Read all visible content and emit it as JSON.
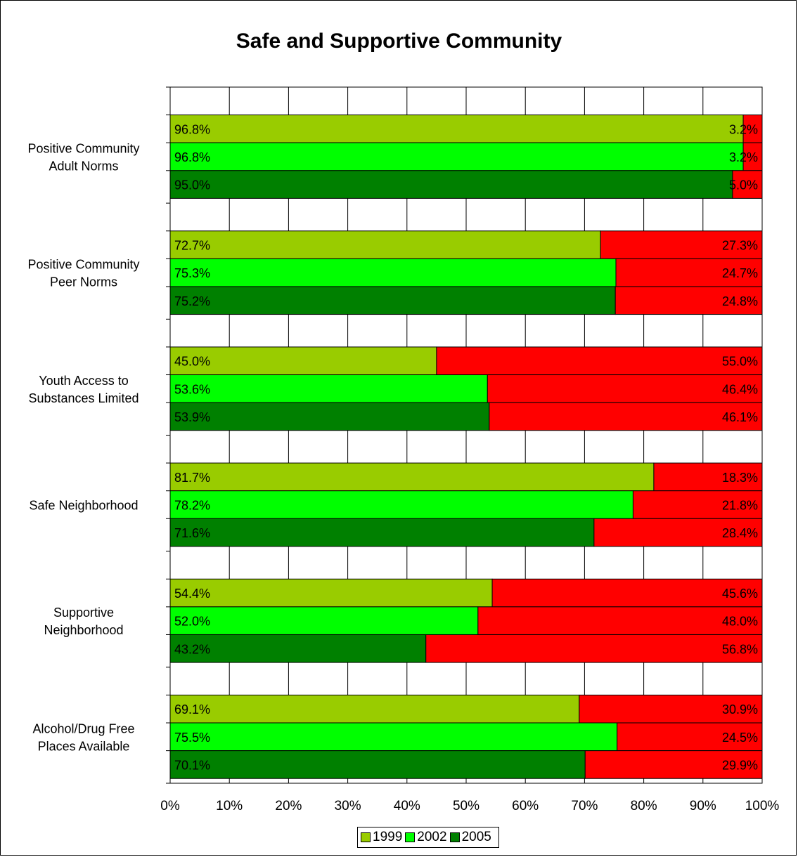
{
  "chart_data": {
    "type": "bar",
    "orientation": "horizontal",
    "stacked": true,
    "title": "Safe and Supportive Community",
    "categories": [
      [
        "Positive Community",
        "Adult Norms"
      ],
      [
        "Positive Community",
        "Peer Norms"
      ],
      [
        "Youth Access to",
        "Substances Limited"
      ],
      [
        "Safe Neighborhood"
      ],
      [
        "Supportive",
        "Neighborhood"
      ],
      [
        "Alcohol/Drug Free",
        "Places Available"
      ]
    ],
    "series": [
      {
        "name": "1999",
        "color": "#99cc00",
        "positive": [
          96.8,
          72.7,
          45.0,
          81.7,
          54.4,
          69.1
        ],
        "negative": [
          3.2,
          27.3,
          55.0,
          18.3,
          45.6,
          30.9
        ],
        "positive_labels": [
          "96.8%",
          "72.7%",
          "45.0%",
          "81.7%",
          "54.4%",
          "69.1%"
        ],
        "negative_labels": [
          "3.2%",
          "27.3%",
          "55.0%",
          "18.3%",
          "45.6%",
          "30.9%"
        ]
      },
      {
        "name": "2002",
        "color": "#00ff00",
        "positive": [
          96.8,
          75.3,
          53.6,
          78.2,
          52.0,
          75.5
        ],
        "negative": [
          3.2,
          24.7,
          46.4,
          21.8,
          48.0,
          24.5
        ],
        "positive_labels": [
          "96.8%",
          "75.3%",
          "53.6%",
          "78.2%",
          "52.0%",
          "75.5%"
        ],
        "negative_labels": [
          "3.2%",
          "24.7%",
          "46.4%",
          "21.8%",
          "48.0%",
          "24.5%"
        ]
      },
      {
        "name": "2005",
        "color": "#008000",
        "positive": [
          95.0,
          75.2,
          53.9,
          71.6,
          43.2,
          70.1
        ],
        "negative": [
          5.0,
          24.8,
          46.1,
          28.4,
          56.8,
          29.9
        ],
        "positive_labels": [
          "95.0%",
          "75.2%",
          "53.9%",
          "71.6%",
          "43.2%",
          "70.1%"
        ],
        "negative_labels": [
          "5.0%",
          "24.8%",
          "46.1%",
          "28.4%",
          "56.8%",
          "29.9%"
        ]
      }
    ],
    "negative_color": "#ff0000",
    "xlim": [
      0,
      100
    ],
    "x_ticks": [
      "0%",
      "10%",
      "20%",
      "30%",
      "40%",
      "50%",
      "60%",
      "70%",
      "80%",
      "90%",
      "100%"
    ],
    "grid": true,
    "legend_position": "bottom"
  }
}
